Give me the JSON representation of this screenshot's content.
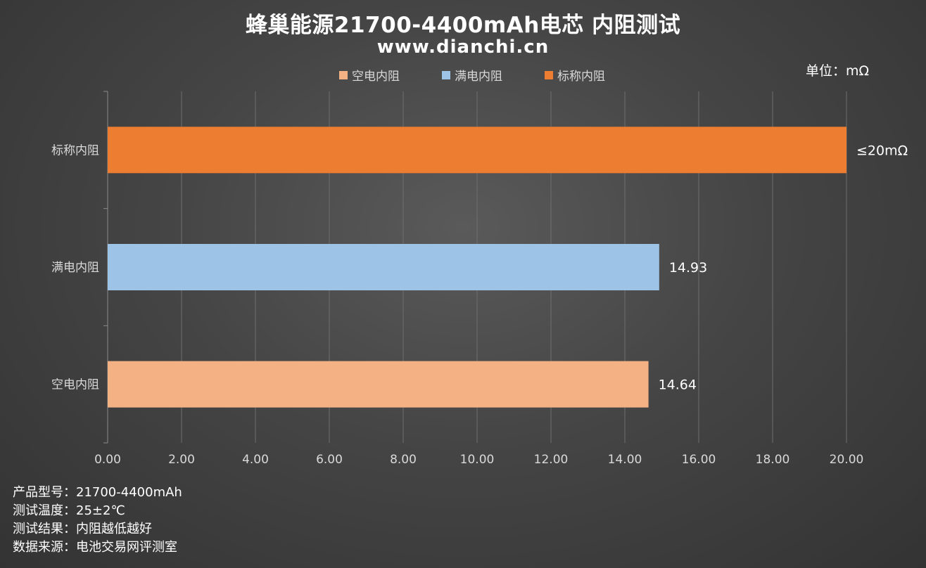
{
  "chart_data": {
    "type": "bar",
    "orientation": "horizontal",
    "title": "蜂巢能源21700-4400mAh电芯 内阻测试",
    "subtitle": "www.dianchi.cn",
    "unit_label": "单位：mΩ",
    "categories": [
      "标称内阻",
      "满电内阻",
      "空电内阻"
    ],
    "values": [
      20,
      14.93,
      14.64
    ],
    "data_labels": [
      "≤20mΩ",
      "14.93",
      "14.64"
    ],
    "colors": [
      "#ED7D31",
      "#9DC3E6",
      "#F4B183"
    ],
    "legend": [
      {
        "name": "空电内阻",
        "color": "#F4B183"
      },
      {
        "name": "满电内阻",
        "color": "#9DC3E6"
      },
      {
        "name": "标称内阻",
        "color": "#ED7D31"
      }
    ],
    "legend_position": "top",
    "xlim": [
      0,
      20
    ],
    "x_ticks": [
      "0.00",
      "2.00",
      "4.00",
      "6.00",
      "8.00",
      "10.00",
      "12.00",
      "14.00",
      "16.00",
      "18.00",
      "20.00"
    ],
    "grid": true
  },
  "notes": [
    {
      "label": "产品型号：",
      "value": "21700-4400mAh"
    },
    {
      "label": "测试温度：",
      "value": "25±2℃"
    },
    {
      "label": "测试结果：",
      "value": "内阻越低越好"
    },
    {
      "label": "数据来源：",
      "value": "电池交易网评测室"
    }
  ]
}
